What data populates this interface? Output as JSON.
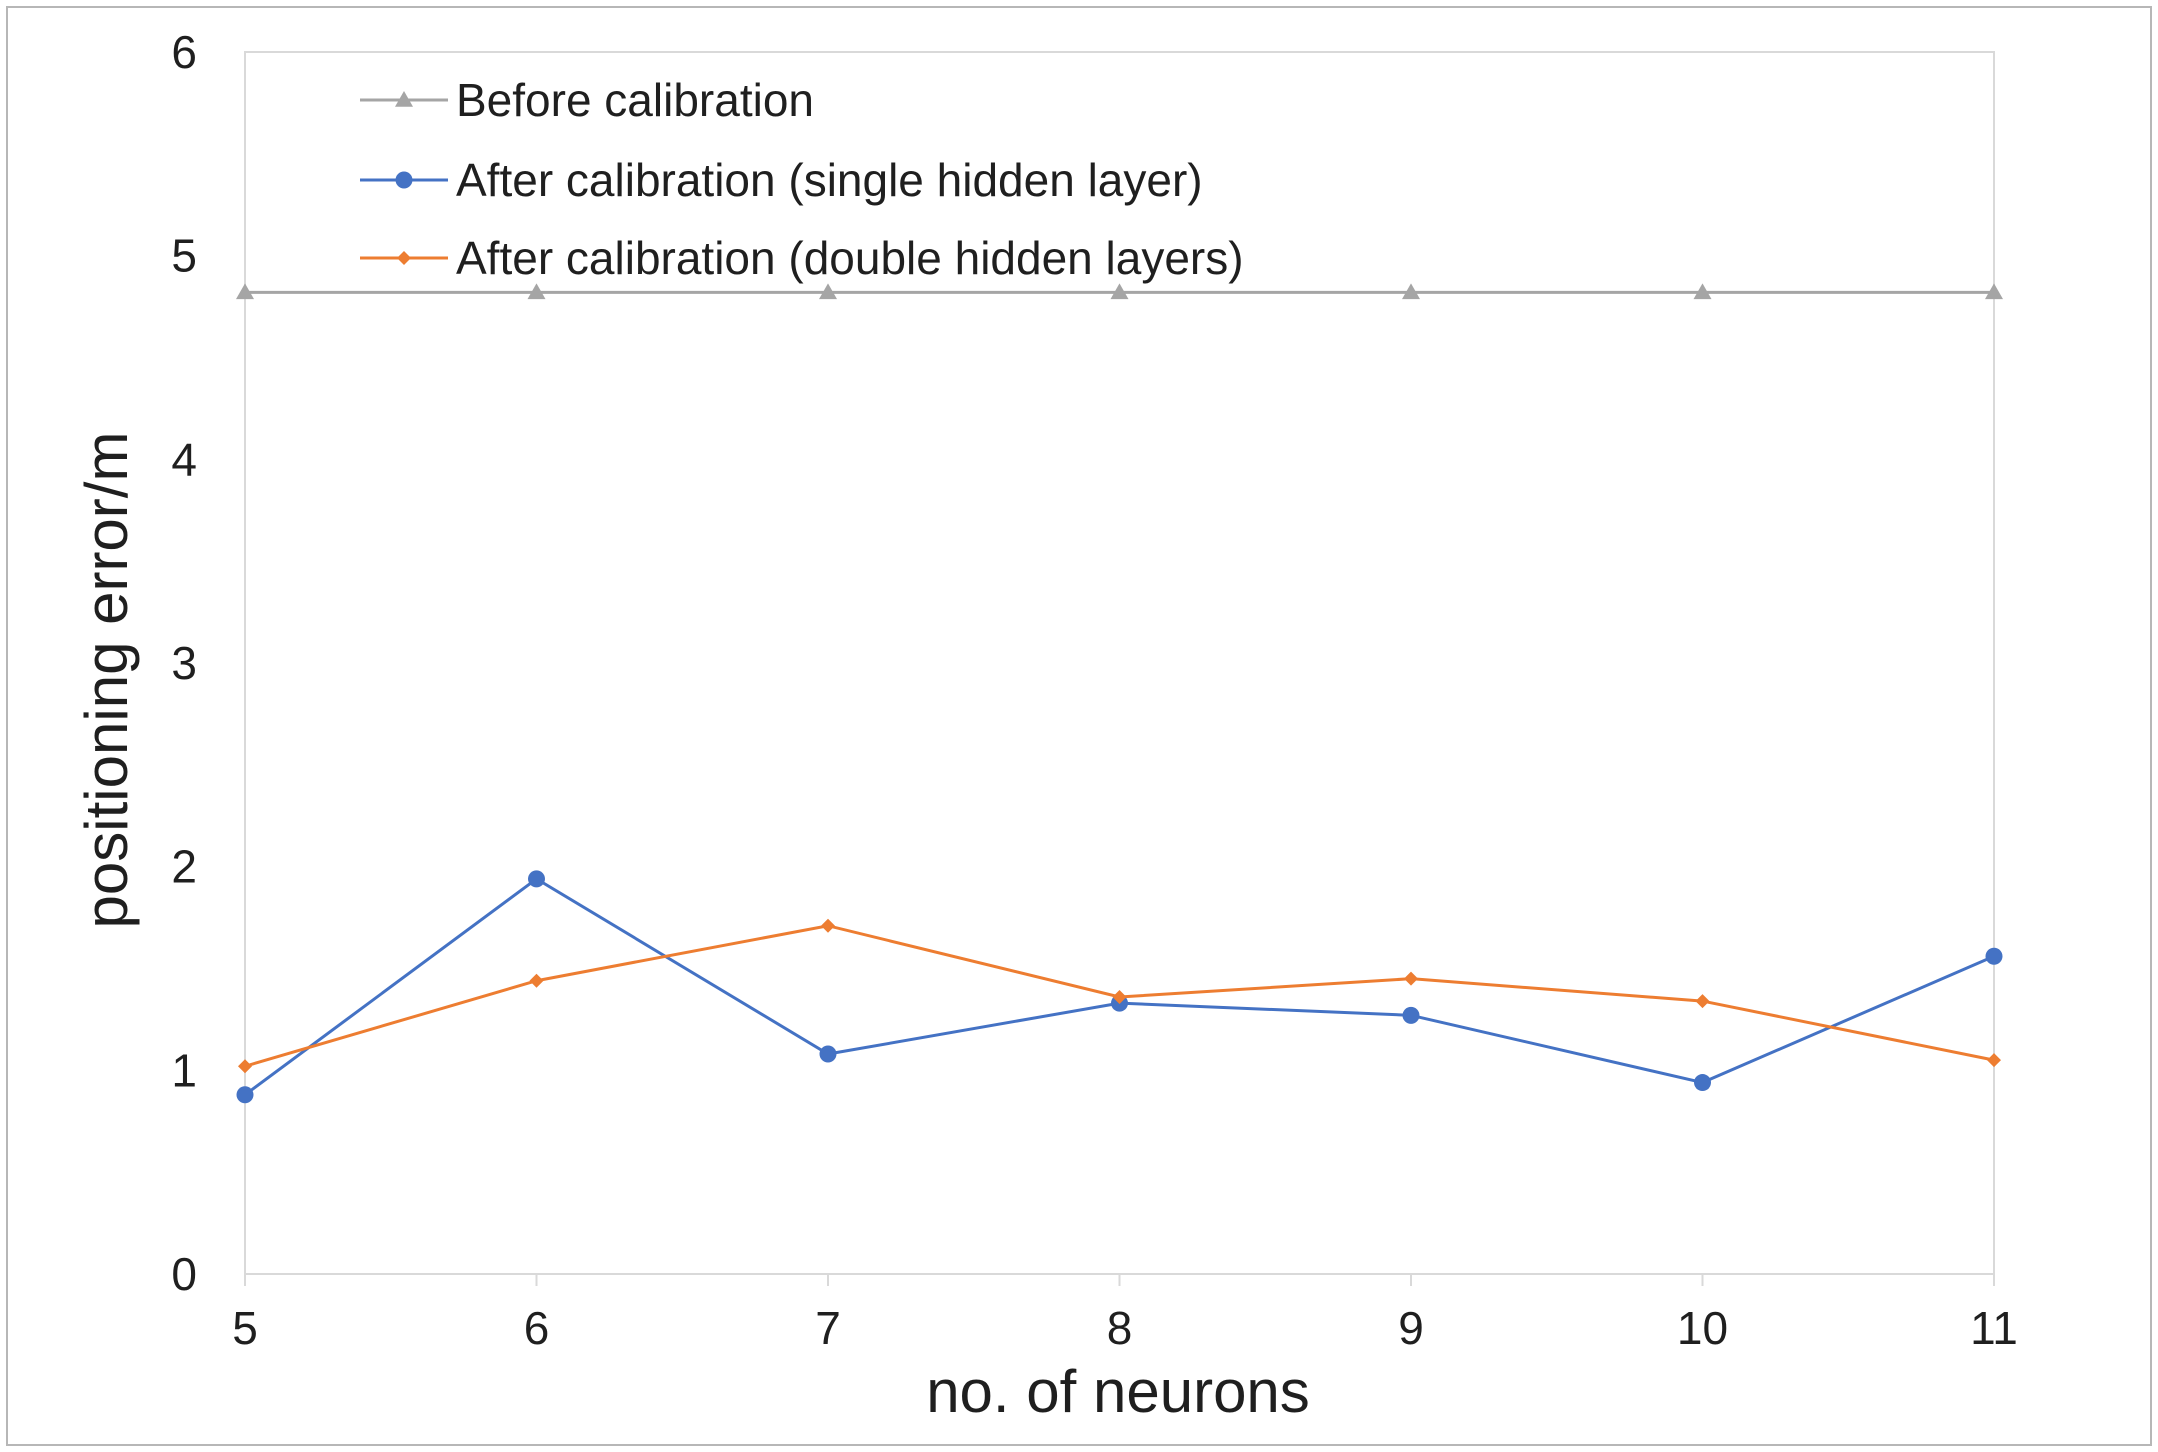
{
  "chart_data": {
    "type": "line",
    "title": "",
    "xlabel": "no. of neurons",
    "ylabel": "positioning error/m",
    "x": [
      5,
      6,
      7,
      8,
      9,
      10,
      11
    ],
    "x_tick_labels": [
      "5",
      "6",
      "7",
      "8",
      "9",
      "10",
      "11"
    ],
    "y_tick_labels": [
      "0",
      "1",
      "2",
      "3",
      "4",
      "5",
      "6"
    ],
    "ylim": [
      0,
      6
    ],
    "xlim": [
      5,
      11
    ],
    "grid": false,
    "legend_position": "top-left",
    "series": [
      {
        "name": "Before calibration",
        "color": "#a5a5a5",
        "marker": "triangle",
        "values": [
          4.82,
          4.82,
          4.82,
          4.82,
          4.82,
          4.82,
          4.82
        ]
      },
      {
        "name": "After calibration (single hidden layer)",
        "color": "#4472c4",
        "marker": "circle",
        "values": [
          0.88,
          1.94,
          1.08,
          1.33,
          1.27,
          0.94,
          1.56
        ]
      },
      {
        "name": "After calibration (double hidden layers)",
        "color": "#ed7d31",
        "marker": "diamond",
        "values": [
          1.02,
          1.44,
          1.71,
          1.36,
          1.45,
          1.34,
          1.05
        ]
      }
    ]
  }
}
